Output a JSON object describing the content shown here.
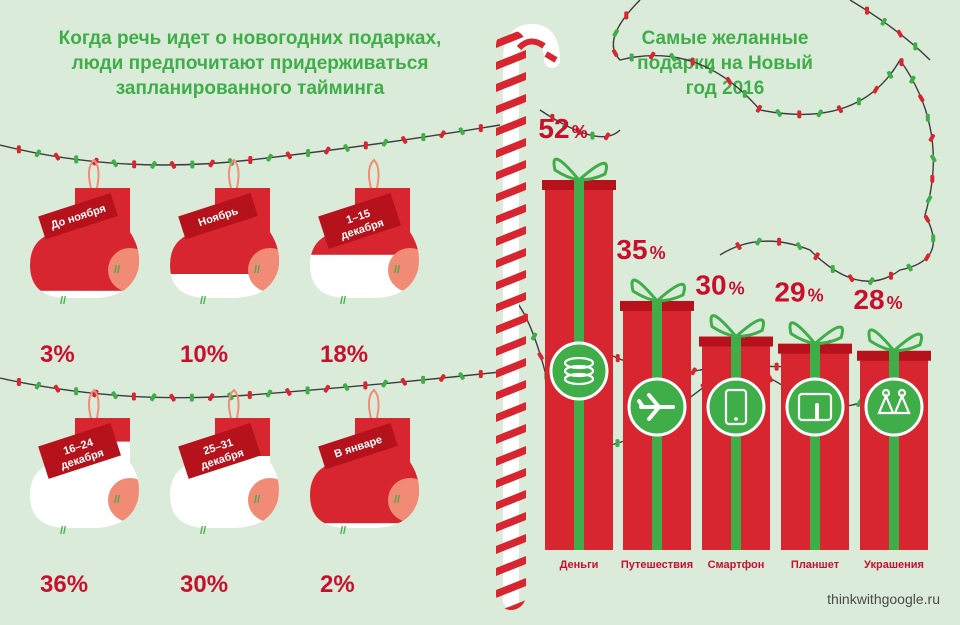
{
  "left_title": [
    "Когда речь идет о новогодних подарках,",
    "люди предпочитают придерживаться",
    "запланированного тайминга"
  ],
  "right_title": [
    "Самые желанные",
    "подарки на Новый",
    "год 2016"
  ],
  "source": "thinkwithgoogle.ru",
  "colors": {
    "red": "#d7262f",
    "dark_red": "#b5121b",
    "green": "#3fae49",
    "bg": "#dbebd9",
    "light_red": "#f28b76"
  },
  "chart_data": [
    {
      "type": "pictograph",
      "categories": [
        "До ноября",
        "Ноябрь",
        "1–15 декабря",
        "16–24 декабря",
        "25–31 декабря",
        "В январе"
      ],
      "tag_lines": [
        [
          "До ноября"
        ],
        [
          "Ноябрь"
        ],
        [
          "1–15",
          "декабря"
        ],
        [
          "16–24",
          "декабря"
        ],
        [
          "25–31",
          "декабря"
        ],
        [
          "В январе"
        ]
      ],
      "values": [
        3,
        10,
        18,
        36,
        30,
        2
      ],
      "labels": [
        "3%",
        "10%",
        "18%",
        "36%",
        "30%",
        "2%"
      ]
    },
    {
      "type": "bar",
      "categories": [
        "Деньги",
        "Путешествия",
        "Смартфон",
        "Планшет",
        "Украшения"
      ],
      "icons": [
        "coins-icon",
        "airplane-icon",
        "smartphone-icon",
        "tablet-icon",
        "earrings-icon"
      ],
      "values": [
        52,
        35,
        30,
        29,
        28
      ],
      "labels": [
        "52%",
        "35%",
        "30%",
        "29%",
        "28%"
      ]
    }
  ]
}
